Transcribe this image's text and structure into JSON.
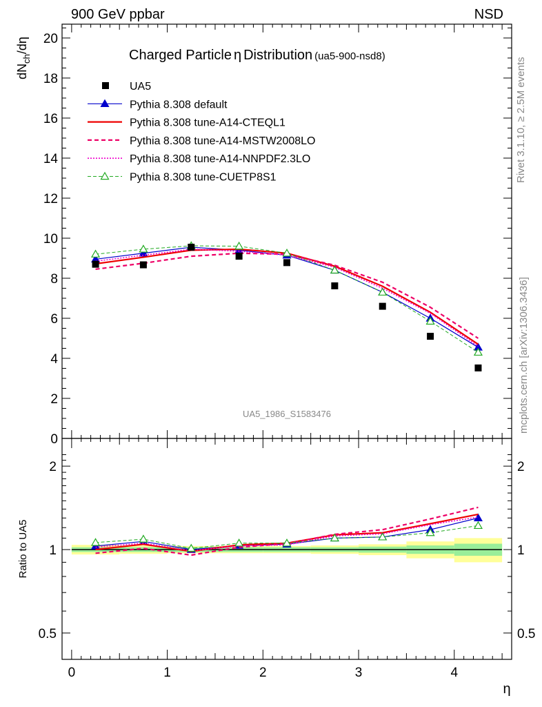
{
  "header": {
    "left": "900 GeV ppbar",
    "right": "NSD"
  },
  "side_text": {
    "rivet": "Rivet 3.1.10, ≥ 2.5M events",
    "mcplots": "mcplots.cern.ch [arXiv:1306.3436]"
  },
  "chart_data": [
    {
      "type": "line",
      "title": "Charged Particle",
      "title_symbol": "η",
      "title_suffix": "Distribution",
      "title_tag": "(ua5-900-nsd8)",
      "ylabel": "dN_ch/dη",
      "ylim": [
        0,
        20.8
      ],
      "yticks": [
        0,
        2,
        4,
        6,
        8,
        10,
        12,
        14,
        16,
        18,
        20
      ],
      "x": [
        0.25,
        0.75,
        1.25,
        1.75,
        2.25,
        2.75,
        3.25,
        3.75,
        4.25
      ],
      "xlim": [
        -0.1,
        4.6
      ],
      "watermark": "UA5_1986_S1583476",
      "legend_position": "top-left",
      "data": {
        "name": "UA5",
        "color": "#000000",
        "y": [
          8.7,
          8.67,
          9.55,
          9.1,
          8.78,
          7.62,
          6.6,
          5.1,
          3.52
        ]
      },
      "series": [
        {
          "name": "Pythia 8.308 default",
          "color": "#0000cc",
          "style": "solid",
          "marker": "filled-triangle",
          "y": [
            8.95,
            9.25,
            9.55,
            9.4,
            9.15,
            8.4,
            7.3,
            6.0,
            4.55
          ]
        },
        {
          "name": "Pythia 8.308 tune-A14-CTEQL1",
          "color": "#ee0000",
          "style": "solid-thick",
          "marker": "none",
          "y": [
            8.72,
            9.05,
            9.4,
            9.45,
            9.25,
            8.6,
            7.6,
            6.3,
            4.7
          ]
        },
        {
          "name": "Pythia 8.308 tune-A14-MSTW2008LO",
          "color": "#ee0066",
          "style": "dashed-thick",
          "marker": "none",
          "y": [
            8.45,
            8.75,
            9.1,
            9.25,
            9.2,
            8.65,
            7.8,
            6.55,
            5.0
          ]
        },
        {
          "name": "Pythia 8.308 tune-A14-NNPDF2.3LO",
          "color": "#ee00cc",
          "style": "dotted",
          "marker": "none",
          "y": [
            8.85,
            9.15,
            9.45,
            9.35,
            9.15,
            8.55,
            7.5,
            6.25,
            4.6
          ]
        },
        {
          "name": "Pythia 8.308 tune-CUETP8S1",
          "color": "#22aa22",
          "style": "dashed-thin",
          "marker": "open-triangle",
          "y": [
            9.2,
            9.45,
            9.62,
            9.6,
            9.25,
            8.4,
            7.3,
            5.85,
            4.3
          ]
        }
      ]
    },
    {
      "type": "line",
      "ylabel": "Ratio to UA5",
      "xlabel": "η",
      "ylim": [
        0.41,
        2.32
      ],
      "yscale": "log",
      "yticks": [
        0.5,
        1,
        2
      ],
      "ytick_labels": [
        "0.5",
        "1",
        "2"
      ],
      "xticks": [
        0,
        1,
        2,
        3,
        4
      ],
      "xlim": [
        -0.1,
        4.6
      ],
      "uncertainty_bins": [
        {
          "x": [
            0,
            0.5
          ],
          "inner": 0.02,
          "outer": 0.04
        },
        {
          "x": [
            0.5,
            1.0
          ],
          "inner": 0.02,
          "outer": 0.035
        },
        {
          "x": [
            1.0,
            1.5
          ],
          "inner": 0.02,
          "outer": 0.03
        },
        {
          "x": [
            1.5,
            2.0
          ],
          "inner": 0.02,
          "outer": 0.03
        },
        {
          "x": [
            2.0,
            2.5
          ],
          "inner": 0.02,
          "outer": 0.03
        },
        {
          "x": [
            2.5,
            3.0
          ],
          "inner": 0.02,
          "outer": 0.035
        },
        {
          "x": [
            3.0,
            3.5
          ],
          "inner": 0.025,
          "outer": 0.045
        },
        {
          "x": [
            3.5,
            4.0
          ],
          "inner": 0.035,
          "outer": 0.07
        },
        {
          "x": [
            4.0,
            4.5
          ],
          "inner": 0.05,
          "outer": 0.1
        }
      ],
      "series": [
        {
          "name": "Pythia 8.308 default",
          "y": [
            1.03,
            1.07,
            1.0,
            1.035,
            1.045,
            1.1,
            1.11,
            1.18,
            1.3
          ]
        },
        {
          "name": "Pythia 8.308 tune-A14-CTEQL1",
          "y": [
            1.0,
            1.045,
            0.985,
            1.04,
            1.055,
            1.13,
            1.15,
            1.24,
            1.34
          ]
        },
        {
          "name": "Pythia 8.308 tune-A14-MSTW2008LO",
          "y": [
            0.97,
            1.01,
            0.955,
            1.02,
            1.05,
            1.135,
            1.18,
            1.29,
            1.42
          ]
        },
        {
          "name": "Pythia 8.308 tune-A14-NNPDF2.3LO",
          "y": [
            1.02,
            1.055,
            0.99,
            1.03,
            1.04,
            1.12,
            1.14,
            1.23,
            1.31
          ]
        },
        {
          "name": "Pythia 8.308 tune-CUETP8S1",
          "y": [
            1.06,
            1.09,
            1.01,
            1.055,
            1.055,
            1.1,
            1.11,
            1.15,
            1.22
          ]
        }
      ]
    }
  ]
}
